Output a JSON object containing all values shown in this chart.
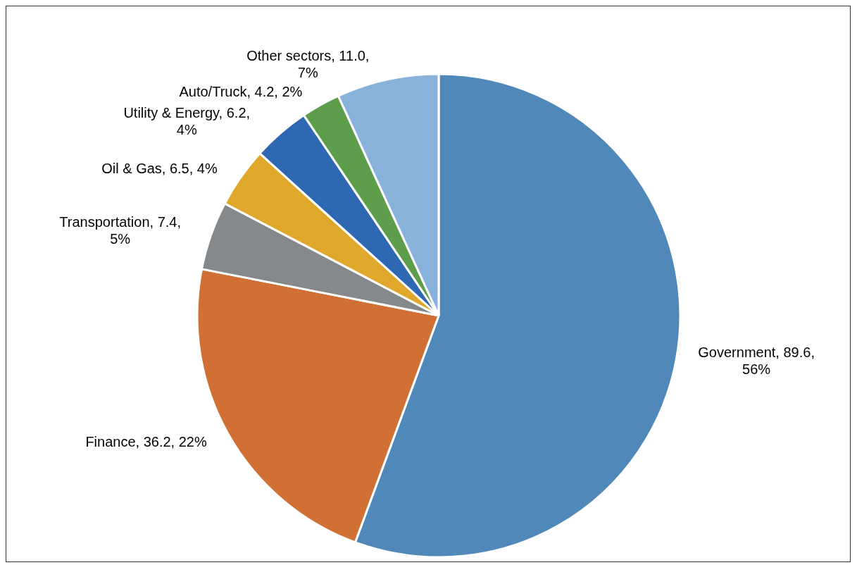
{
  "chart_data": {
    "type": "pie",
    "categories": [
      "Government",
      "Finance",
      "Transportation",
      "Oil & Gas",
      "Utility & Energy",
      "Auto/Truck",
      "Other sectors"
    ],
    "values": [
      89.6,
      36.2,
      7.4,
      6.5,
      6.2,
      4.2,
      11.0
    ],
    "value_labels": [
      "89.6, 56%",
      "36.2, 22%",
      "7.4, 5%",
      "6.5, 4%",
      "6.2, 4%",
      "4.2, 2%",
      "11.0, 7%"
    ],
    "colors": [
      "#4f88b9",
      "#d07034",
      "#85898c",
      "#e0a82a",
      "#2e67b2",
      "#5e9d4b",
      "#88b2da"
    ],
    "legend": false
  }
}
